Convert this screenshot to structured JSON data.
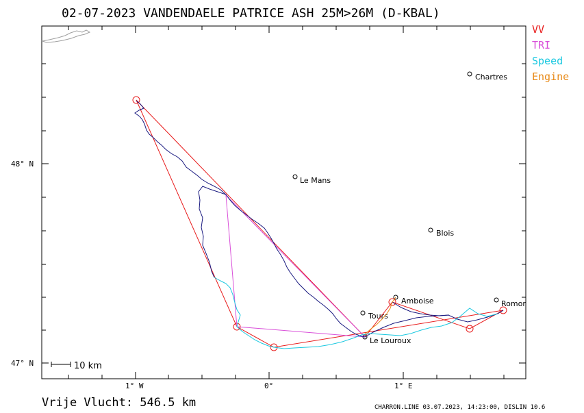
{
  "title": "02-07-2023   VANDENDAELE PATRICE   ASH 25M>26M (D-KBAL)",
  "legend": [
    {
      "label": "VV",
      "color": "#e81c1c"
    },
    {
      "label": "TRI",
      "color": "#d94fd9"
    },
    {
      "label": "Speed",
      "color": "#19c8e0"
    },
    {
      "label": "Engine",
      "color": "#e88a18"
    }
  ],
  "lat_labels": [
    "48° N",
    "47° N"
  ],
  "lon_labels": [
    "1° W",
    "0°",
    "1° E"
  ],
  "scale_label": "10 km",
  "distance": "Vrije Vlucht:  546.5 km",
  "footer": "CHARRON.LINE 03.07.2023, 14:23:00, DISLIN 10.6",
  "cities": [
    {
      "name": "Chartres"
    },
    {
      "name": "Le Mans"
    },
    {
      "name": "Blois"
    },
    {
      "name": "Amboise"
    },
    {
      "name": "Tours"
    },
    {
      "name": "Romor"
    },
    {
      "name": "Le Louroux"
    }
  ],
  "colors": {
    "track": "#1a1a80",
    "vv": "#e81c1c",
    "tri": "#d94fd9",
    "speed": "#19c8e0",
    "engine": "#e88a18",
    "coast": "#a0a0a0"
  }
}
